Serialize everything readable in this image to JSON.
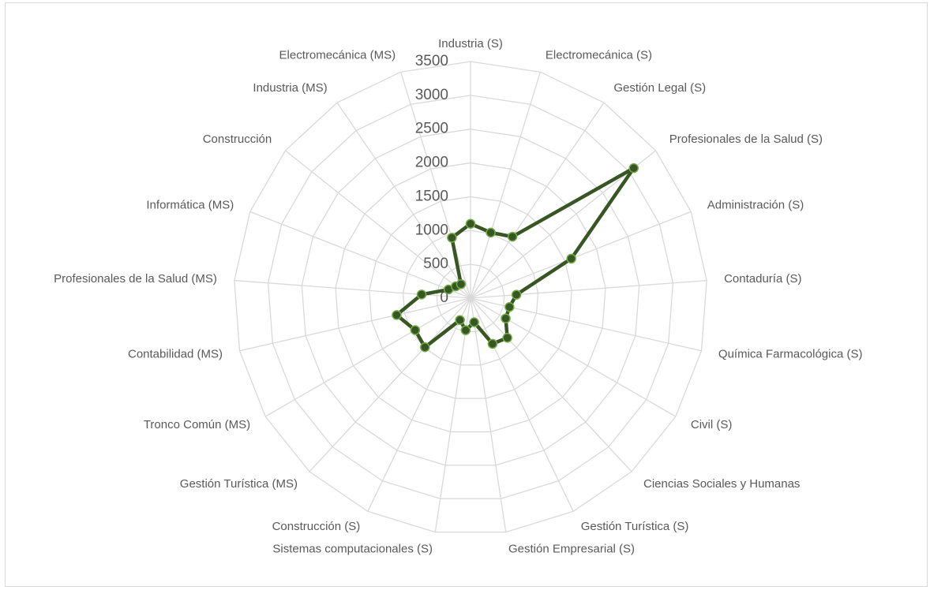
{
  "chart_data": {
    "type": "radar",
    "categories": [
      "Industria (S)",
      "Electromecánica (S)",
      "Gestión Legal (S)",
      "Profesionales de la Salud (S)",
      "Administración (S)",
      "Contaduría  (S)",
      "Química Farmacológica (S)",
      "Civil (S)",
      "Ciencias Sociales y Humanas",
      "Gestión Turística (S)",
      "Gestión Empresarial (S)",
      "Sistemas computacionales (S)",
      "Construcción (S)",
      "Gestión Turística (MS)",
      "Tronco Común (MS)",
      "Contabilidad (MS)",
      "Profesionales de la Salud (MS)",
      "Informática (MS)",
      "Construcción",
      "Industria (MS)",
      "Electromecánica (MS)"
    ],
    "series": [
      {
        "color": "#375623",
        "values": [
          1100,
          1015,
          1100,
          3085,
          1600,
          680,
          590,
          600,
          800,
          750,
          360,
          480,
          360,
          990,
          945,
          1120,
          725,
          350,
          280,
          250,
          935
        ]
      }
    ],
    "ylim": [
      0,
      3500
    ],
    "yticks": [
      0,
      500,
      1000,
      1500,
      2000,
      2500,
      3000,
      3500
    ],
    "grid": true
  }
}
